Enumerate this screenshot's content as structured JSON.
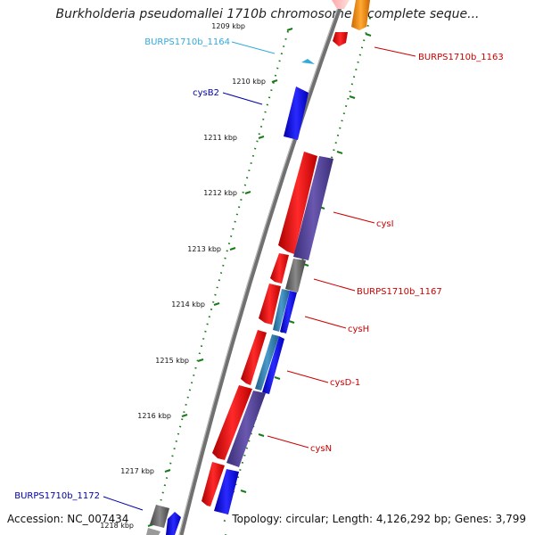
{
  "title": "Burkholderia pseudomallei 1710b chromosome I, complete seque...",
  "footer": {
    "accession": "Accession: NC_007434",
    "summary": "Topology: circular; Length: 4,126,292 bp; Genes: 3,799"
  },
  "colors": {
    "forward_gene": "#ff0000",
    "reverse_gene": "#0000ff",
    "forward_label": "#cc0000",
    "reverse_label": "#0000aa",
    "highlight_label": "#33aadd",
    "scale_ticks": "#1a7a1a",
    "purple_gene": "#554499",
    "grey_gene": "#777777",
    "orange_gene": "#ff9900"
  },
  "ticks": [
    {
      "label": "1209 kbp"
    },
    {
      "label": "1210 kbp"
    },
    {
      "label": "1211 kbp"
    },
    {
      "label": "1212 kbp"
    },
    {
      "label": "1213 kbp"
    },
    {
      "label": "1214 kbp"
    },
    {
      "label": "1215 kbp"
    },
    {
      "label": "1216 kbp"
    },
    {
      "label": "1217 kbp"
    },
    {
      "label": "1218 kbp"
    }
  ],
  "gene_labels": [
    {
      "name": "BURPS1710b_1164",
      "color": "#33aadd"
    },
    {
      "name": "cysB2",
      "color": "#0000aa"
    },
    {
      "name": "BURPS1710b_1163",
      "color": "#cc0000"
    },
    {
      "name": "cysI",
      "color": "#cc0000"
    },
    {
      "name": "BURPS1710b_1167",
      "color": "#cc0000"
    },
    {
      "name": "cysH",
      "color": "#cc0000"
    },
    {
      "name": "cysD-1",
      "color": "#cc0000"
    },
    {
      "name": "cysN",
      "color": "#cc0000"
    },
    {
      "name": "BURPS1710b_1172",
      "color": "#0000aa"
    }
  ]
}
